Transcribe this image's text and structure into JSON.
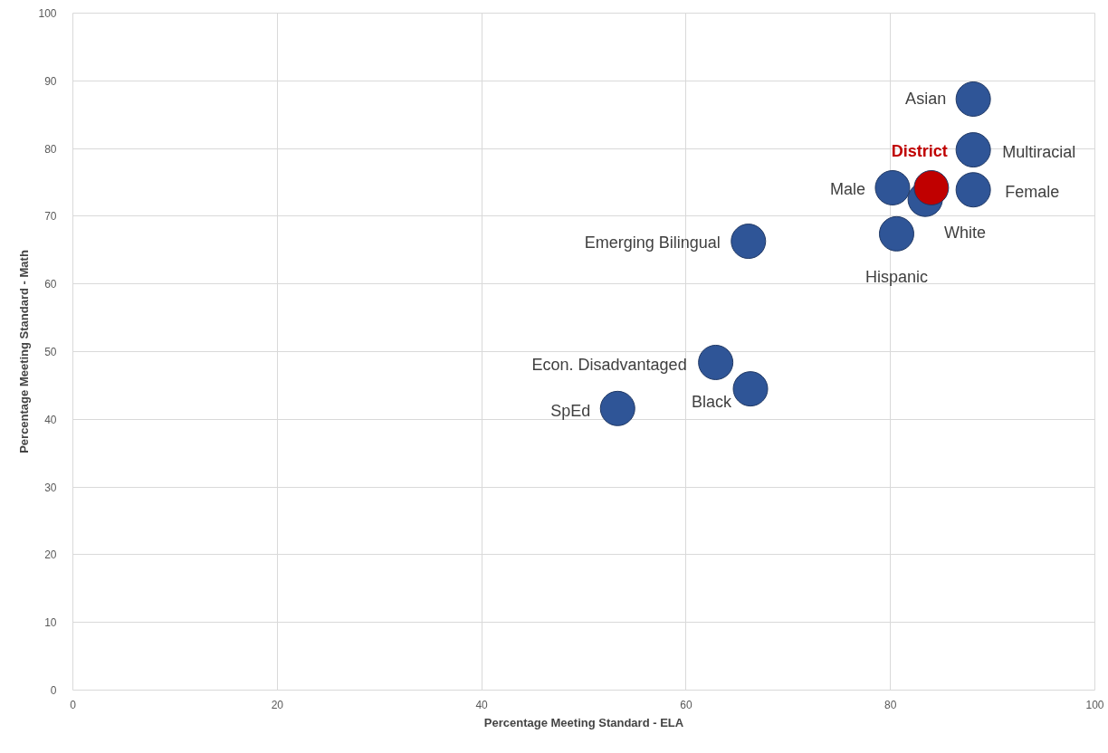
{
  "chart_data": {
    "type": "scatter",
    "xlabel": "Percentage Meeting Standard - ELA",
    "ylabel": "Percentage Meeting Standard - Math",
    "xlim": [
      0,
      100
    ],
    "xticks": [
      0,
      20,
      40,
      60,
      80,
      100
    ],
    "ylim": [
      0,
      100
    ],
    "yticks": [
      0,
      10,
      20,
      30,
      40,
      50,
      60,
      70,
      80,
      90,
      100
    ],
    "grid": true,
    "marker": "circle",
    "series": [
      {
        "color": "#2f5597",
        "x": [
          88.1,
          88.1,
          80.2,
          88.1,
          83.4,
          80.6,
          66.1,
          62.9,
          66.3,
          53.3
        ],
        "values": [
          87.3,
          79.8,
          74.2,
          73.9,
          72.5,
          67.4,
          66.3,
          48.4,
          44.5,
          41.6
        ]
      },
      {
        "name": "District",
        "color": "#c00000",
        "x": [
          84.0
        ],
        "values": [
          74.2
        ]
      }
    ],
    "annotations": [
      {
        "text": "Asian",
        "x": 88.1,
        "y": 87.3
      },
      {
        "text": "Multiracial",
        "x": 88.1,
        "y": 79.8
      },
      {
        "text": "Male",
        "x": 80.2,
        "y": 74.2
      },
      {
        "text": "Female",
        "x": 88.1,
        "y": 73.9
      },
      {
        "text": "White",
        "x": 83.4,
        "y": 72.5
      },
      {
        "text": "Hispanic",
        "x": 80.6,
        "y": 67.4
      },
      {
        "text": "Emerging Bilingual",
        "x": 66.1,
        "y": 66.3
      },
      {
        "text": "Econ. Disadvantaged",
        "x": 62.9,
        "y": 48.4
      },
      {
        "text": "Black",
        "x": 66.3,
        "y": 44.5
      },
      {
        "text": "SpEd",
        "x": 53.3,
        "y": 41.6
      }
    ]
  }
}
